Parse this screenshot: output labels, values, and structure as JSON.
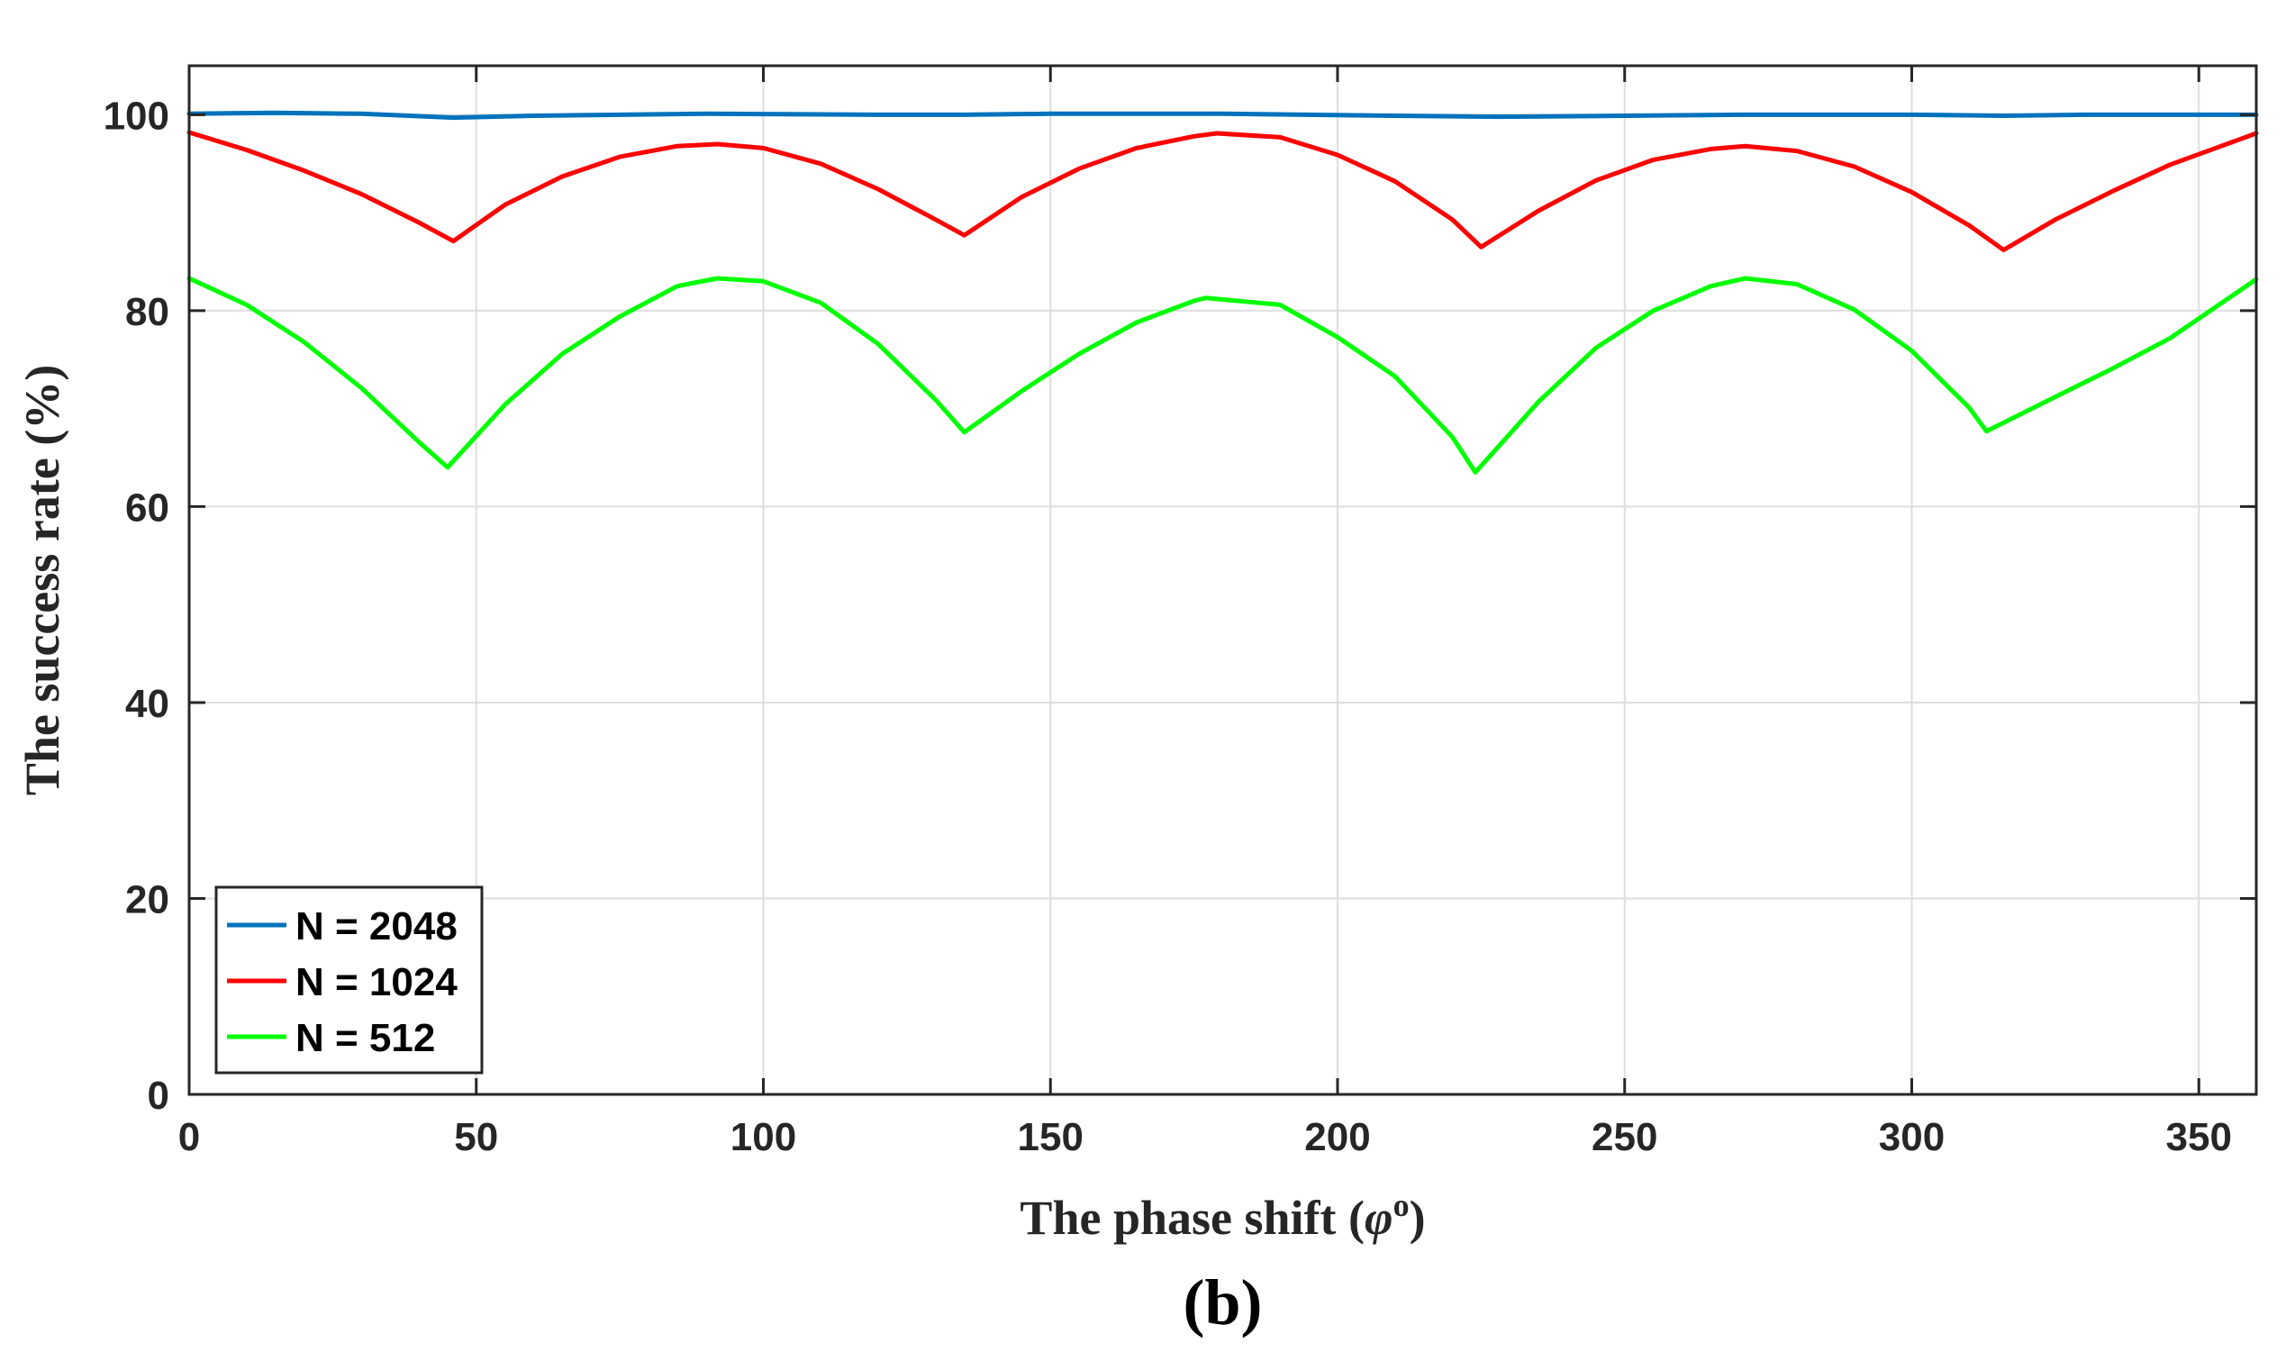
{
  "caption": "(b)",
  "chart_data": {
    "type": "line",
    "xlabel_prefix": "The phase shift (",
    "xlabel_symbol": "φ",
    "xlabel_sup": "o",
    "xlabel_suffix": ")",
    "ylabel": "The success rate (%)",
    "xlim": [
      0,
      360
    ],
    "ylim": [
      0,
      105
    ],
    "xticks": [
      0,
      50,
      100,
      150,
      200,
      250,
      300,
      350
    ],
    "yticks": [
      0,
      20,
      40,
      60,
      80,
      100
    ],
    "grid": true,
    "legend_position": "bottom-left",
    "series": [
      {
        "name": "N = 2048",
        "color": "#0072BD",
        "x": [
          0,
          15,
          30,
          46,
          60,
          90,
          120,
          135,
          150,
          180,
          210,
          228,
          250,
          270,
          300,
          316,
          330,
          360
        ],
        "y": [
          100.1,
          100.2,
          100.1,
          99.7,
          99.9,
          100.1,
          100.0,
          100.0,
          100.1,
          100.1,
          99.9,
          99.8,
          99.9,
          100.0,
          100.0,
          99.9,
          100.0,
          100.0
        ]
      },
      {
        "name": "N = 1024",
        "color": "#FF0000",
        "x": [
          0,
          10,
          20,
          30,
          40,
          46,
          55,
          65,
          75,
          85,
          92,
          100,
          110,
          120,
          130,
          135,
          145,
          155,
          165,
          175,
          179,
          190,
          200,
          210,
          220,
          225,
          235,
          245,
          255,
          265,
          271,
          280,
          290,
          300,
          310,
          316,
          325,
          335,
          345,
          360
        ],
        "y": [
          98.2,
          96.4,
          94.3,
          91.9,
          89.0,
          87.1,
          90.8,
          93.7,
          95.7,
          96.8,
          97.0,
          96.6,
          95.0,
          92.4,
          89.3,
          87.7,
          91.6,
          94.5,
          96.6,
          97.8,
          98.1,
          97.7,
          95.9,
          93.2,
          89.3,
          86.5,
          90.2,
          93.3,
          95.4,
          96.5,
          96.8,
          96.3,
          94.7,
          92.1,
          88.7,
          86.2,
          89.3,
          92.2,
          94.9,
          98.1
        ]
      },
      {
        "name": "N = 512",
        "color": "#00FF00",
        "x": [
          0,
          10,
          20,
          30,
          40,
          45,
          55,
          65,
          75,
          85,
          92,
          100,
          110,
          120,
          130,
          135,
          145,
          155,
          165,
          175,
          177,
          190,
          200,
          210,
          220,
          224,
          235,
          245,
          255,
          265,
          271,
          280,
          290,
          300,
          310,
          313,
          325,
          335,
          345,
          360
        ],
        "y": [
          83.3,
          80.6,
          76.8,
          72.1,
          66.6,
          64.0,
          70.4,
          75.6,
          79.4,
          82.5,
          83.3,
          83.0,
          80.8,
          76.6,
          70.9,
          67.6,
          71.8,
          75.6,
          78.8,
          81.0,
          81.3,
          80.6,
          77.3,
          73.3,
          67.1,
          63.5,
          70.7,
          76.2,
          80.0,
          82.5,
          83.3,
          82.7,
          80.1,
          75.9,
          70.1,
          67.7,
          71.2,
          74.1,
          77.2,
          83.2
        ]
      }
    ]
  }
}
